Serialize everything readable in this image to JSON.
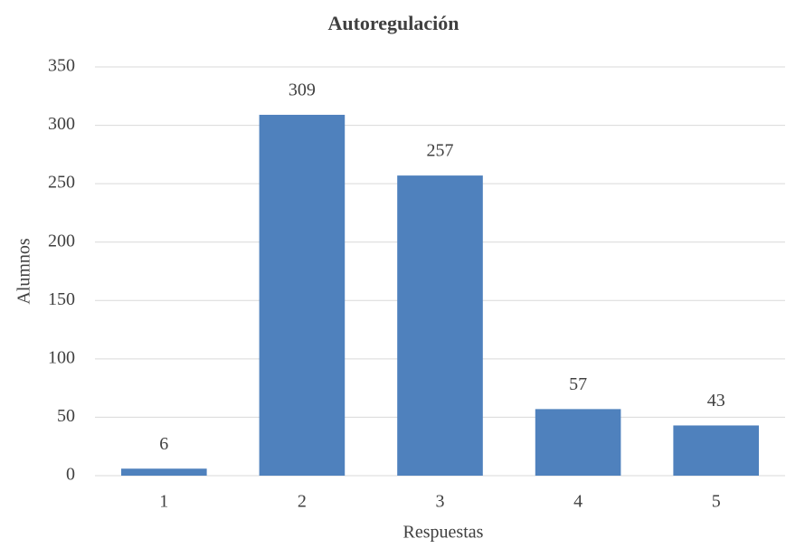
{
  "chart_data": {
    "type": "bar",
    "title": "Autoregulación",
    "x_label": "Respuestas",
    "y_label": "Alumnos",
    "categories": [
      "1",
      "2",
      "3",
      "4",
      "5"
    ],
    "values": [
      6,
      309,
      257,
      57,
      43
    ],
    "color": "#4f81bd",
    "ylim": [
      0,
      350
    ],
    "yticks": [
      0,
      50,
      100,
      150,
      200,
      250,
      300,
      350
    ],
    "grid": true,
    "data_labels": true
  }
}
